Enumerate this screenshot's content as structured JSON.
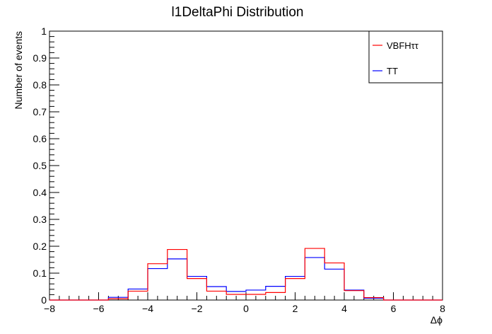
{
  "chart_data": {
    "type": "step-histogram",
    "title": "l1DeltaPhi Distribution",
    "xlabel": "Δϕ",
    "ylabel": "Number of events",
    "xlim": [
      -8,
      8
    ],
    "ylim": [
      0,
      1
    ],
    "xticks": [
      "−8",
      "−6",
      "−4",
      "−2",
      "0",
      "2",
      "4",
      "6",
      "8"
    ],
    "yticks": [
      "0",
      "0.1",
      "0.2",
      "0.3",
      "0.4",
      "0.5",
      "0.6",
      "0.7",
      "0.8",
      "0.9",
      "1"
    ],
    "bin_edges": [
      -8.0,
      -7.2,
      -6.4,
      -5.6,
      -4.8,
      -4.0,
      -3.2,
      -2.4,
      -1.6,
      -0.8,
      0.0,
      0.8,
      1.6,
      2.4,
      3.2,
      4.0,
      4.8,
      5.6,
      6.4,
      7.2,
      8.0
    ],
    "series": [
      {
        "name": "VBFHττ",
        "color": "#ff0000",
        "values": [
          0,
          0,
          0,
          0.005,
          0.033,
          0.135,
          0.188,
          0.08,
          0.033,
          0.021,
          0.021,
          0.028,
          0.08,
          0.192,
          0.138,
          0.035,
          0.009,
          0,
          0,
          0
        ]
      },
      {
        "name": "TT",
        "color": "#0000ff",
        "values": [
          0,
          0,
          0,
          0.01,
          0.041,
          0.117,
          0.153,
          0.088,
          0.05,
          0.032,
          0.037,
          0.051,
          0.088,
          0.158,
          0.115,
          0.037,
          0.007,
          0,
          0,
          0
        ]
      }
    ],
    "legend_position": "top-right"
  }
}
